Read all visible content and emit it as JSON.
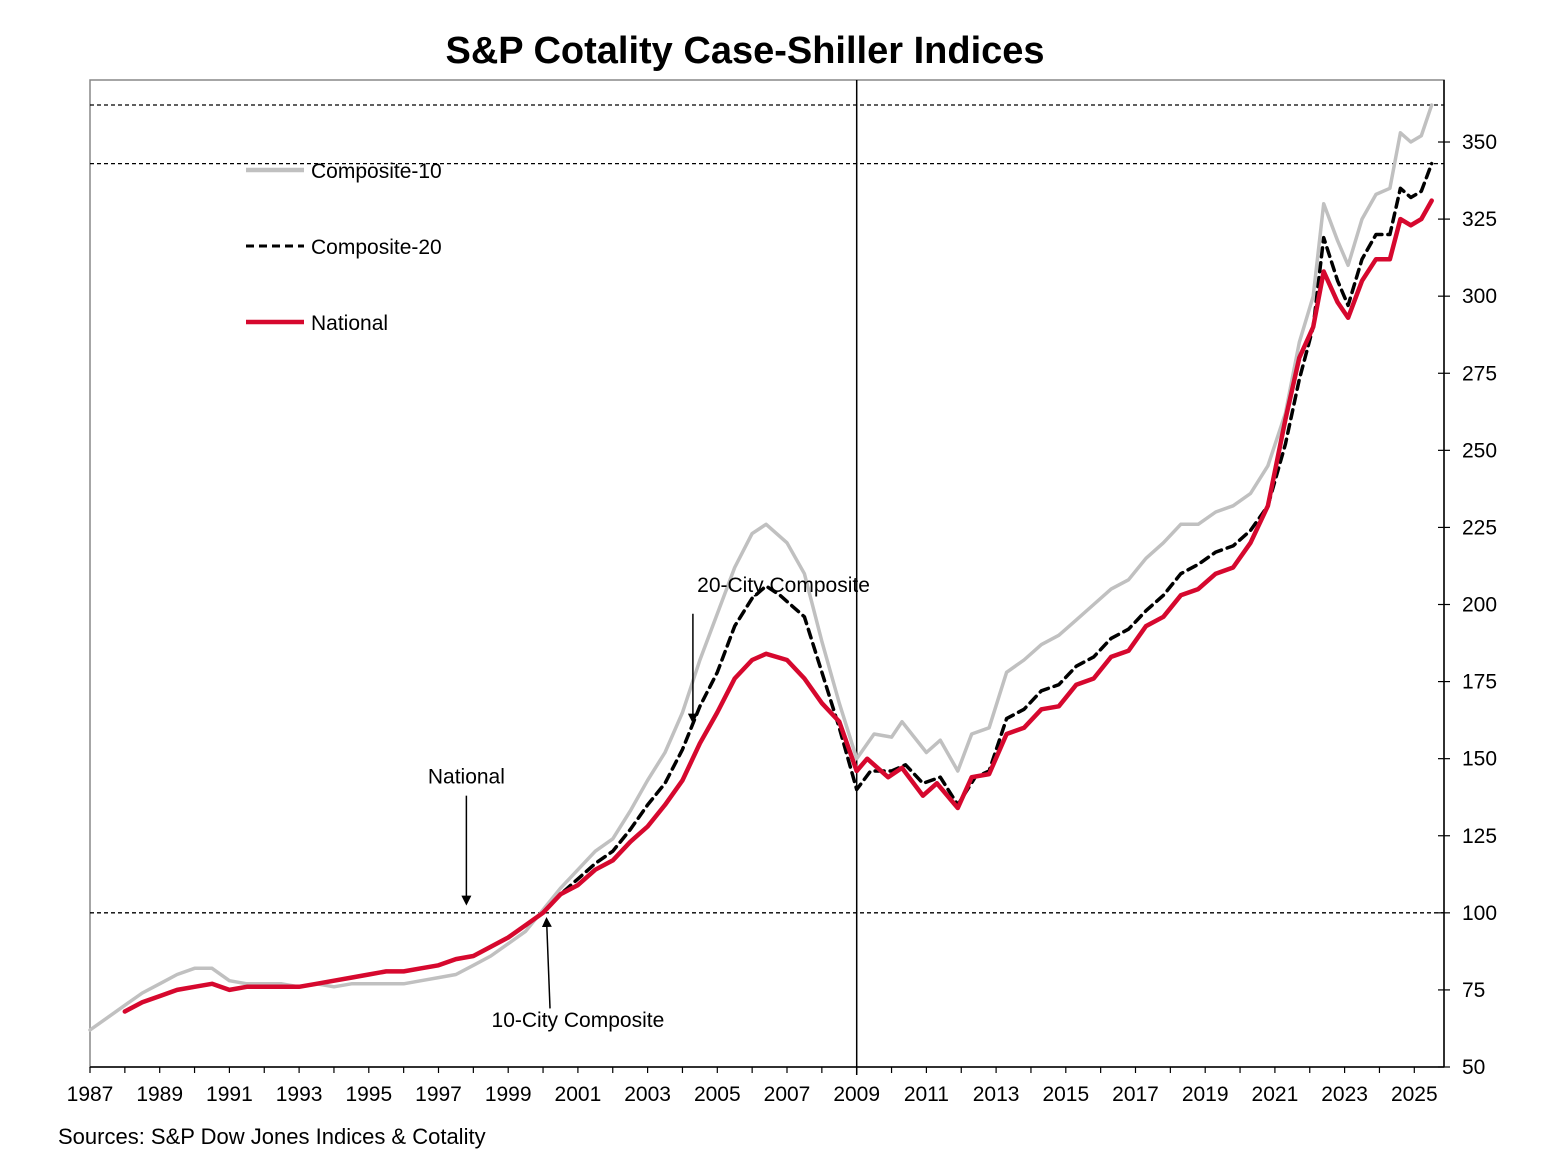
{
  "chart_data": {
    "type": "line",
    "title": "S&P Cotality Case-Shiller Indices",
    "source": "Sources:  S&P Dow Jones Indices & Cotality",
    "xlabel": "",
    "ylabel": "",
    "xlim": [
      1987,
      2025.9
    ],
    "ylim": [
      50,
      365
    ],
    "y_axis_position": "right",
    "x_ticks": [
      "1987",
      "1989",
      "1991",
      "1993",
      "1995",
      "1997",
      "1999",
      "2001",
      "2003",
      "2005",
      "2007",
      "2009",
      "2011",
      "2013",
      "2015",
      "2017",
      "2019",
      "2021",
      "2023",
      "2025"
    ],
    "y_ticks": [
      "50",
      "75",
      "100",
      "125",
      "150",
      "175",
      "200",
      "225",
      "250",
      "275",
      "300",
      "325",
      "350"
    ],
    "reference_lines": {
      "horizontal": [
        100,
        343,
        362
      ],
      "vertical": [
        2009
      ]
    },
    "legend_position": "top-left",
    "series": [
      {
        "name": "Composite-10",
        "color": "#c0c0c0",
        "style": "solid",
        "points": [
          [
            1987,
            62
          ],
          [
            1987.5,
            66
          ],
          [
            1988,
            70
          ],
          [
            1988.5,
            74
          ],
          [
            1989,
            77
          ],
          [
            1989.5,
            80
          ],
          [
            1990,
            82
          ],
          [
            1990.5,
            82
          ],
          [
            1991,
            78
          ],
          [
            1991.5,
            77
          ],
          [
            1992,
            77
          ],
          [
            1992.5,
            77
          ],
          [
            1993,
            76
          ],
          [
            1993.5,
            77
          ],
          [
            1994,
            76
          ],
          [
            1994.5,
            77
          ],
          [
            1995,
            77
          ],
          [
            1995.5,
            77
          ],
          [
            1996,
            77
          ],
          [
            1996.5,
            78
          ],
          [
            1997,
            79
          ],
          [
            1997.5,
            80
          ],
          [
            1998,
            83
          ],
          [
            1998.5,
            86
          ],
          [
            1999,
            90
          ],
          [
            1999.5,
            94
          ],
          [
            2000,
            101
          ],
          [
            2000.5,
            108
          ],
          [
            2001,
            114
          ],
          [
            2001.5,
            120
          ],
          [
            2002,
            124
          ],
          [
            2002.5,
            133
          ],
          [
            2003,
            143
          ],
          [
            2003.5,
            152
          ],
          [
            2004,
            165
          ],
          [
            2004.5,
            182
          ],
          [
            2005,
            197
          ],
          [
            2005.5,
            212
          ],
          [
            2006,
            223
          ],
          [
            2006.4,
            226
          ],
          [
            2007,
            220
          ],
          [
            2007.5,
            210
          ],
          [
            2008,
            188
          ],
          [
            2008.5,
            168
          ],
          [
            2009,
            150
          ],
          [
            2009.5,
            158
          ],
          [
            2010,
            157
          ],
          [
            2010.3,
            162
          ],
          [
            2011,
            152
          ],
          [
            2011.4,
            156
          ],
          [
            2011.9,
            146
          ],
          [
            2012.3,
            158
          ],
          [
            2012.8,
            160
          ],
          [
            2013.3,
            178
          ],
          [
            2013.8,
            182
          ],
          [
            2014.3,
            187
          ],
          [
            2014.8,
            190
          ],
          [
            2015.3,
            195
          ],
          [
            2015.8,
            200
          ],
          [
            2016.3,
            205
          ],
          [
            2016.8,
            208
          ],
          [
            2017.3,
            215
          ],
          [
            2017.8,
            220
          ],
          [
            2018.3,
            226
          ],
          [
            2018.8,
            226
          ],
          [
            2019.3,
            230
          ],
          [
            2019.8,
            232
          ],
          [
            2020.3,
            236
          ],
          [
            2020.8,
            245
          ],
          [
            2021.3,
            262
          ],
          [
            2021.7,
            285
          ],
          [
            2022.1,
            300
          ],
          [
            2022.4,
            330
          ],
          [
            2022.8,
            318
          ],
          [
            2023.1,
            310
          ],
          [
            2023.5,
            325
          ],
          [
            2023.9,
            333
          ],
          [
            2024.3,
            335
          ],
          [
            2024.6,
            353
          ],
          [
            2024.9,
            350
          ],
          [
            2025.2,
            352
          ],
          [
            2025.5,
            362
          ]
        ]
      },
      {
        "name": "Composite-20",
        "color": "#000000",
        "style": "dashed",
        "points": [
          [
            2000,
            100
          ],
          [
            2000.5,
            106
          ],
          [
            2001,
            111
          ],
          [
            2001.5,
            116
          ],
          [
            2002,
            120
          ],
          [
            2002.5,
            127
          ],
          [
            2003,
            135
          ],
          [
            2003.5,
            142
          ],
          [
            2004,
            153
          ],
          [
            2004.5,
            167
          ],
          [
            2005,
            178
          ],
          [
            2005.5,
            193
          ],
          [
            2006,
            202
          ],
          [
            2006.4,
            206
          ],
          [
            2006.8,
            203
          ],
          [
            2007.5,
            196
          ],
          [
            2008,
            178
          ],
          [
            2008.5,
            160
          ],
          [
            2009,
            140
          ],
          [
            2009.4,
            146
          ],
          [
            2010,
            146
          ],
          [
            2010.4,
            148
          ],
          [
            2010.9,
            142
          ],
          [
            2011.4,
            144
          ],
          [
            2011.9,
            135
          ],
          [
            2012.4,
            144
          ],
          [
            2012.8,
            146
          ],
          [
            2013.3,
            163
          ],
          [
            2013.8,
            166
          ],
          [
            2014.3,
            172
          ],
          [
            2014.8,
            174
          ],
          [
            2015.3,
            180
          ],
          [
            2015.8,
            183
          ],
          [
            2016.3,
            189
          ],
          [
            2016.8,
            192
          ],
          [
            2017.3,
            198
          ],
          [
            2017.8,
            203
          ],
          [
            2018.3,
            210
          ],
          [
            2018.8,
            213
          ],
          [
            2019.3,
            217
          ],
          [
            2019.8,
            219
          ],
          [
            2020.3,
            224
          ],
          [
            2020.8,
            232
          ],
          [
            2021.3,
            252
          ],
          [
            2021.7,
            273
          ],
          [
            2022.1,
            290
          ],
          [
            2022.4,
            319
          ],
          [
            2022.8,
            305
          ],
          [
            2023.1,
            297
          ],
          [
            2023.5,
            312
          ],
          [
            2023.9,
            320
          ],
          [
            2024.3,
            320
          ],
          [
            2024.6,
            335
          ],
          [
            2024.9,
            332
          ],
          [
            2025.2,
            334
          ],
          [
            2025.5,
            343
          ]
        ]
      },
      {
        "name": "National",
        "color": "#d6082e",
        "style": "solid",
        "points": [
          [
            1988,
            68
          ],
          [
            1988.5,
            71
          ],
          [
            1989,
            73
          ],
          [
            1989.5,
            75
          ],
          [
            1990,
            76
          ],
          [
            1990.5,
            77
          ],
          [
            1991,
            75
          ],
          [
            1991.5,
            76
          ],
          [
            1992,
            76
          ],
          [
            1992.5,
            76
          ],
          [
            1993,
            76
          ],
          [
            1993.5,
            77
          ],
          [
            1994,
            78
          ],
          [
            1994.5,
            79
          ],
          [
            1995,
            80
          ],
          [
            1995.5,
            81
          ],
          [
            1996,
            81
          ],
          [
            1996.5,
            82
          ],
          [
            1997,
            83
          ],
          [
            1997.5,
            85
          ],
          [
            1998,
            86
          ],
          [
            1998.5,
            89
          ],
          [
            1999,
            92
          ],
          [
            1999.5,
            96
          ],
          [
            2000,
            100
          ],
          [
            2000.5,
            106
          ],
          [
            2001,
            109
          ],
          [
            2001.5,
            114
          ],
          [
            2002,
            117
          ],
          [
            2002.5,
            123
          ],
          [
            2003,
            128
          ],
          [
            2003.5,
            135
          ],
          [
            2004,
            143
          ],
          [
            2004.5,
            155
          ],
          [
            2005,
            165
          ],
          [
            2005.5,
            176
          ],
          [
            2006,
            182
          ],
          [
            2006.4,
            184
          ],
          [
            2007,
            182
          ],
          [
            2007.5,
            176
          ],
          [
            2008,
            168
          ],
          [
            2008.5,
            162
          ],
          [
            2009,
            146
          ],
          [
            2009.3,
            150
          ],
          [
            2009.9,
            144
          ],
          [
            2010.3,
            147
          ],
          [
            2010.9,
            138
          ],
          [
            2011.3,
            142
          ],
          [
            2011.9,
            134
          ],
          [
            2012.3,
            144
          ],
          [
            2012.8,
            145
          ],
          [
            2013.3,
            158
          ],
          [
            2013.8,
            160
          ],
          [
            2014.3,
            166
          ],
          [
            2014.8,
            167
          ],
          [
            2015.3,
            174
          ],
          [
            2015.8,
            176
          ],
          [
            2016.3,
            183
          ],
          [
            2016.8,
            185
          ],
          [
            2017.3,
            193
          ],
          [
            2017.8,
            196
          ],
          [
            2018.3,
            203
          ],
          [
            2018.8,
            205
          ],
          [
            2019.3,
            210
          ],
          [
            2019.8,
            212
          ],
          [
            2020.3,
            220
          ],
          [
            2020.8,
            232
          ],
          [
            2021.3,
            260
          ],
          [
            2021.7,
            280
          ],
          [
            2022.1,
            290
          ],
          [
            2022.4,
            308
          ],
          [
            2022.8,
            298
          ],
          [
            2023.1,
            293
          ],
          [
            2023.5,
            305
          ],
          [
            2023.9,
            312
          ],
          [
            2024.3,
            312
          ],
          [
            2024.6,
            325
          ],
          [
            2024.9,
            323
          ],
          [
            2025.2,
            325
          ],
          [
            2025.5,
            331
          ]
        ]
      }
    ],
    "annotations": [
      {
        "text": "20-City Composite",
        "at": [
          2006.9,
          204
        ],
        "arrow_from": [
          2004.3,
          197
        ],
        "arrow_to": [
          2004.3,
          162
        ],
        "arrow_dir": "down"
      },
      {
        "text": "National",
        "at": [
          1997.8,
          142
        ],
        "arrow_from": [
          1997.8,
          138
        ],
        "arrow_to": [
          1997.8,
          103
        ],
        "arrow_dir": "down"
      },
      {
        "text": "10-City Composite",
        "at": [
          2001,
          63
        ],
        "arrow_from": [
          2000.2,
          69
        ],
        "arrow_to": [
          2000.1,
          98
        ],
        "arrow_dir": "up"
      }
    ]
  }
}
